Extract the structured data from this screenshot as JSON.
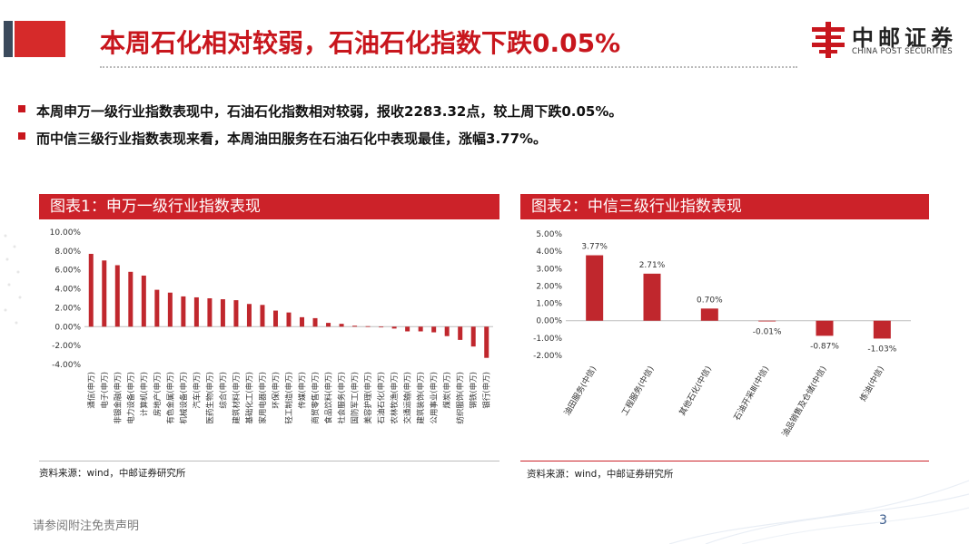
{
  "header": {
    "title": "本周石化相对较弱，石油石化指数下跌0.05%",
    "logo_cn": "中邮证券",
    "logo_en": "CHINA POST SECURITIES"
  },
  "bullets": [
    "本周申万一级行业指数表现中，石油石化指数相对较弱，报收2283.32点，较上周下跌0.05%。",
    "而中信三级行业指数表现来看，本周油田服务在石油石化中表现最佳，涨幅3.77%。"
  ],
  "panels": [
    {
      "title": "图表1：申万一级行业指数表现",
      "source": "资料来源：wind，中邮证券研究所"
    },
    {
      "title": "图表2：中信三级行业指数表现",
      "source": "资料来源：wind，中邮证券研究所"
    }
  ],
  "footer": {
    "disclaimer": "请参阅附注免责声明",
    "page": "3"
  },
  "colors": {
    "brand_red": "#c8161d",
    "bar_red": "#c0272d",
    "panel_red": "#cc2229"
  },
  "chart_data": [
    {
      "type": "bar",
      "categories": [
        "通信(申万)",
        "电子(申万)",
        "非银金融(申万)",
        "电力设备(申万)",
        "计算机(申万)",
        "房地产(申万)",
        "有色金属(申万)",
        "机械设备(申万)",
        "汽车(申万)",
        "医药生物(申万)",
        "综合(申万)",
        "建筑材料(申万)",
        "基础化工(申万)",
        "家用电器(申万)",
        "环保(申万)",
        "轻工制造(申万)",
        "传媒(申万)",
        "商贸零售(申万)",
        "食品饮料(申万)",
        "社会服务(申万)",
        "国防军工(申万)",
        "美容护理(申万)",
        "石油石化(申万)",
        "农林牧渔(申万)",
        "交通运输(申万)",
        "建筑装饰(申万)",
        "公用事业(申万)",
        "煤炭(申万)",
        "纺织服饰(申万)",
        "钢铁(申万)",
        "银行(申万)"
      ],
      "values": [
        7.7,
        7.0,
        6.5,
        5.8,
        5.4,
        3.9,
        3.6,
        3.2,
        3.1,
        3.0,
        2.9,
        2.8,
        2.4,
        2.3,
        1.7,
        1.5,
        1.0,
        0.9,
        0.4,
        0.3,
        0.1,
        0.05,
        -0.05,
        -0.2,
        -0.5,
        -0.5,
        -0.6,
        -1.0,
        -1.4,
        -2.1,
        -3.3
      ],
      "yticks": [
        "10.00%",
        "8.00%",
        "6.00%",
        "4.00%",
        "2.00%",
        "0.00%",
        "-2.00%",
        "-4.00%"
      ],
      "ylim": [
        -4,
        10
      ]
    },
    {
      "type": "bar",
      "categories": [
        "油田服务(中信)",
        "工程服务(中信)",
        "其他石化(中信)",
        "石油开采Ⅲ(中信)",
        "油品销售及仓储(中信)",
        "炼油(中信)"
      ],
      "values": [
        3.77,
        2.71,
        0.7,
        -0.01,
        -0.87,
        -1.03
      ],
      "labels": [
        "3.77%",
        "2.71%",
        "0.70%",
        "-0.01%",
        "-0.87%",
        "-1.03%"
      ],
      "yticks": [
        "5.00%",
        "4.00%",
        "3.00%",
        "2.00%",
        "1.00%",
        "0.00%",
        "-1.00%",
        "-2.00%"
      ],
      "ylim": [
        -2,
        5
      ]
    }
  ]
}
